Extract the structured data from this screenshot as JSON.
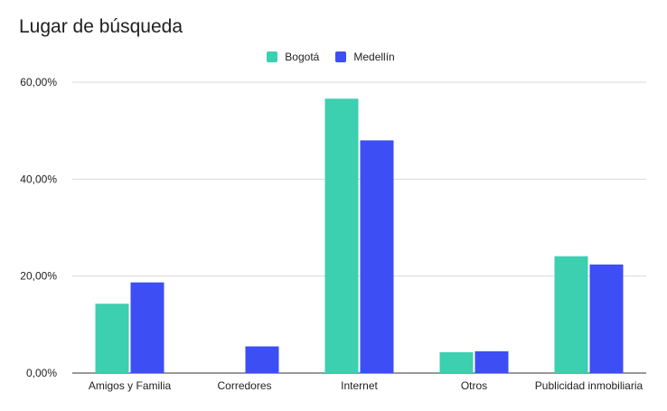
{
  "chart_data": {
    "type": "bar",
    "title": "Lugar de búsqueda",
    "categories": [
      "Amigos y Familia",
      "Corredores",
      "Internet",
      "Otros",
      "Publicidad inmobiliaria"
    ],
    "series": [
      {
        "name": "Bogotá",
        "color": "#3ccfb0",
        "values": [
          14.3,
          0.0,
          56.6,
          4.3,
          24.1
        ]
      },
      {
        "name": "Medellín",
        "color": "#3d4ef5",
        "values": [
          18.7,
          5.5,
          48.0,
          4.5,
          22.4
        ]
      }
    ],
    "ylim": [
      0,
      60
    ],
    "yticks": [
      {
        "value": 0,
        "label": "0,00%"
      },
      {
        "value": 20,
        "label": "20,00%"
      },
      {
        "value": 40,
        "label": "40,00%"
      },
      {
        "value": 60,
        "label": "60,00%"
      }
    ],
    "xlabel": "",
    "ylabel": "",
    "grid": true,
    "legend_position": "top-center"
  }
}
